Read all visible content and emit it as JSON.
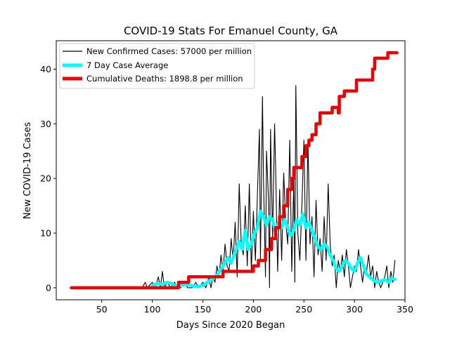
{
  "chart_data": {
    "type": "line",
    "title": "COVID-19 Stats For Emanuel County, GA",
    "xlabel": "Days Since 2020 Began",
    "ylabel": "New COVID-19 Cases",
    "xlim": [
      5,
      350
    ],
    "ylim": [
      -2.2,
      45.2
    ],
    "x_ticks": [
      50,
      100,
      150,
      200,
      250,
      300,
      350
    ],
    "y_ticks": [
      0,
      10,
      20,
      30,
      40
    ],
    "grid": false,
    "legend_position": "top-left",
    "series": [
      {
        "name": "New Confirmed Cases: 57000 per million",
        "color": "#000000",
        "style": "thin-line",
        "points": [
          [
            20,
            0
          ],
          [
            90,
            0
          ],
          [
            93,
            1
          ],
          [
            95,
            0
          ],
          [
            100,
            1
          ],
          [
            103,
            0
          ],
          [
            106,
            2
          ],
          [
            108,
            0
          ],
          [
            110,
            3
          ],
          [
            112,
            0
          ],
          [
            115,
            1
          ],
          [
            118,
            0
          ],
          [
            122,
            1
          ],
          [
            125,
            0
          ],
          [
            128,
            0
          ],
          [
            132,
            1
          ],
          [
            135,
            0
          ],
          [
            140,
            0
          ],
          [
            143,
            1
          ],
          [
            146,
            0
          ],
          [
            150,
            1
          ],
          [
            153,
            0
          ],
          [
            156,
            2
          ],
          [
            158,
            0
          ],
          [
            160,
            2
          ],
          [
            162,
            1
          ],
          [
            164,
            4
          ],
          [
            166,
            2
          ],
          [
            168,
            6
          ],
          [
            170,
            3
          ],
          [
            172,
            8
          ],
          [
            174,
            4
          ],
          [
            176,
            3
          ],
          [
            178,
            9
          ],
          [
            180,
            5
          ],
          [
            182,
            12
          ],
          [
            184,
            2
          ],
          [
            186,
            19
          ],
          [
            188,
            8
          ],
          [
            190,
            6
          ],
          [
            192,
            15
          ],
          [
            194,
            4
          ],
          [
            196,
            19
          ],
          [
            198,
            3
          ],
          [
            200,
            14
          ],
          [
            202,
            5
          ],
          [
            204,
            17
          ],
          [
            206,
            29
          ],
          [
            207,
            5
          ],
          [
            209,
            35
          ],
          [
            210,
            20
          ],
          [
            212,
            2
          ],
          [
            213,
            25
          ],
          [
            215,
            16
          ],
          [
            216,
            0
          ],
          [
            217,
            29
          ],
          [
            219,
            9
          ],
          [
            221,
            30
          ],
          [
            222,
            22
          ],
          [
            224,
            3
          ],
          [
            226,
            18
          ],
          [
            228,
            5
          ],
          [
            230,
            21
          ],
          [
            232,
            12
          ],
          [
            234,
            8
          ],
          [
            236,
            27
          ],
          [
            238,
            3
          ],
          [
            240,
            20
          ],
          [
            241,
            1
          ],
          [
            242,
            37
          ],
          [
            244,
            10
          ],
          [
            246,
            5
          ],
          [
            248,
            15
          ],
          [
            250,
            27
          ],
          [
            252,
            5
          ],
          [
            254,
            27
          ],
          [
            256,
            8
          ],
          [
            258,
            13
          ],
          [
            260,
            2
          ],
          [
            262,
            16
          ],
          [
            264,
            6
          ],
          [
            266,
            9
          ],
          [
            268,
            3
          ],
          [
            270,
            13
          ],
          [
            272,
            5
          ],
          [
            274,
            19
          ],
          [
            276,
            8
          ],
          [
            278,
            4
          ],
          [
            280,
            6
          ],
          [
            282,
            0
          ],
          [
            284,
            5
          ],
          [
            286,
            3
          ],
          [
            288,
            6
          ],
          [
            290,
            2
          ],
          [
            292,
            7
          ],
          [
            294,
            4
          ],
          [
            296,
            0
          ],
          [
            298,
            2
          ],
          [
            300,
            4
          ],
          [
            302,
            3
          ],
          [
            304,
            7
          ],
          [
            306,
            4
          ],
          [
            308,
            1
          ],
          [
            310,
            4
          ],
          [
            312,
            3
          ],
          [
            314,
            6
          ],
          [
            316,
            2
          ],
          [
            318,
            4
          ],
          [
            320,
            0
          ],
          [
            322,
            3
          ],
          [
            324,
            1
          ],
          [
            326,
            0
          ],
          [
            328,
            1
          ],
          [
            330,
            2
          ],
          [
            332,
            4
          ],
          [
            334,
            0
          ],
          [
            336,
            3
          ],
          [
            338,
            1
          ],
          [
            340,
            5
          ]
        ]
      },
      {
        "name": "7 Day Case Average",
        "color": "#00ffff",
        "style": "thick-line",
        "points": [
          [
            100,
            0.3
          ],
          [
            105,
            0.8
          ],
          [
            110,
            0.6
          ],
          [
            115,
            1.0
          ],
          [
            120,
            0.7
          ],
          [
            125,
            0.2
          ],
          [
            130,
            0.5
          ],
          [
            135,
            0.6
          ],
          [
            140,
            0.3
          ],
          [
            145,
            0.2
          ],
          [
            150,
            0.4
          ],
          [
            155,
            1.1
          ],
          [
            160,
            1.7
          ],
          [
            165,
            2.5
          ],
          [
            170,
            4.0
          ],
          [
            175,
            5.5
          ],
          [
            178,
            4.5
          ],
          [
            182,
            6.5
          ],
          [
            186,
            8.5
          ],
          [
            189,
            7.0
          ],
          [
            192,
            10.5
          ],
          [
            195,
            7.0
          ],
          [
            198,
            8.0
          ],
          [
            201,
            10.0
          ],
          [
            204,
            11.0
          ],
          [
            207,
            14.0
          ],
          [
            210,
            13.0
          ],
          [
            213,
            11.5
          ],
          [
            216,
            13.0
          ],
          [
            219,
            12.5
          ],
          [
            222,
            10.0
          ],
          [
            225,
            12.0
          ],
          [
            228,
            11.0
          ],
          [
            231,
            12.5
          ],
          [
            234,
            11.0
          ],
          [
            237,
            9.5
          ],
          [
            240,
            10.5
          ],
          [
            243,
            12.5
          ],
          [
            246,
            11.5
          ],
          [
            249,
            13.5
          ],
          [
            252,
            11.0
          ],
          [
            255,
            12.0
          ],
          [
            258,
            10.5
          ],
          [
            261,
            9.0
          ],
          [
            264,
            7.5
          ],
          [
            267,
            7.0
          ],
          [
            270,
            8.0
          ],
          [
            273,
            7.5
          ],
          [
            276,
            6.0
          ],
          [
            279,
            5.0
          ],
          [
            282,
            3.5
          ],
          [
            285,
            3.0
          ],
          [
            288,
            4.0
          ],
          [
            291,
            5.0
          ],
          [
            294,
            4.5
          ],
          [
            297,
            3.5
          ],
          [
            300,
            3.0
          ],
          [
            303,
            4.5
          ],
          [
            306,
            5.5
          ],
          [
            309,
            4.0
          ],
          [
            312,
            2.5
          ],
          [
            315,
            2.0
          ],
          [
            318,
            1.5
          ],
          [
            322,
            1.0
          ],
          [
            326,
            1.2
          ],
          [
            330,
            1.5
          ],
          [
            334,
            1.0
          ],
          [
            337,
            1.8
          ],
          [
            340,
            1.5
          ]
        ]
      },
      {
        "name": "Cumulative Deaths: 1898.8 per million",
        "color": "#ee0000",
        "style": "thick-line",
        "points": [
          [
            20,
            0
          ],
          [
            126,
            0
          ],
          [
            126,
            1
          ],
          [
            136,
            1
          ],
          [
            136,
            2
          ],
          [
            170,
            2
          ],
          [
            170,
            3
          ],
          [
            200,
            3
          ],
          [
            200,
            4
          ],
          [
            205,
            4
          ],
          [
            205,
            5
          ],
          [
            212,
            5
          ],
          [
            212,
            7
          ],
          [
            218,
            7
          ],
          [
            218,
            9
          ],
          [
            222,
            9
          ],
          [
            222,
            11
          ],
          [
            226,
            11
          ],
          [
            226,
            13
          ],
          [
            230,
            13
          ],
          [
            230,
            15
          ],
          [
            234,
            15
          ],
          [
            234,
            18
          ],
          [
            238,
            18
          ],
          [
            238,
            20
          ],
          [
            240,
            20
          ],
          [
            240,
            22
          ],
          [
            248,
            22
          ],
          [
            248,
            24
          ],
          [
            252,
            24
          ],
          [
            252,
            26
          ],
          [
            255,
            26
          ],
          [
            255,
            27
          ],
          [
            258,
            27
          ],
          [
            258,
            28
          ],
          [
            262,
            28
          ],
          [
            262,
            30
          ],
          [
            266,
            30
          ],
          [
            266,
            32
          ],
          [
            278,
            32
          ],
          [
            278,
            33
          ],
          [
            284,
            33
          ],
          [
            284,
            32
          ],
          [
            285,
            32
          ],
          [
            285,
            35
          ],
          [
            290,
            35
          ],
          [
            290,
            36
          ],
          [
            302,
            36
          ],
          [
            302,
            38
          ],
          [
            318,
            38
          ],
          [
            318,
            40
          ],
          [
            320,
            40
          ],
          [
            320,
            42
          ],
          [
            333,
            42
          ],
          [
            333,
            43
          ],
          [
            342,
            43
          ]
        ]
      }
    ]
  }
}
